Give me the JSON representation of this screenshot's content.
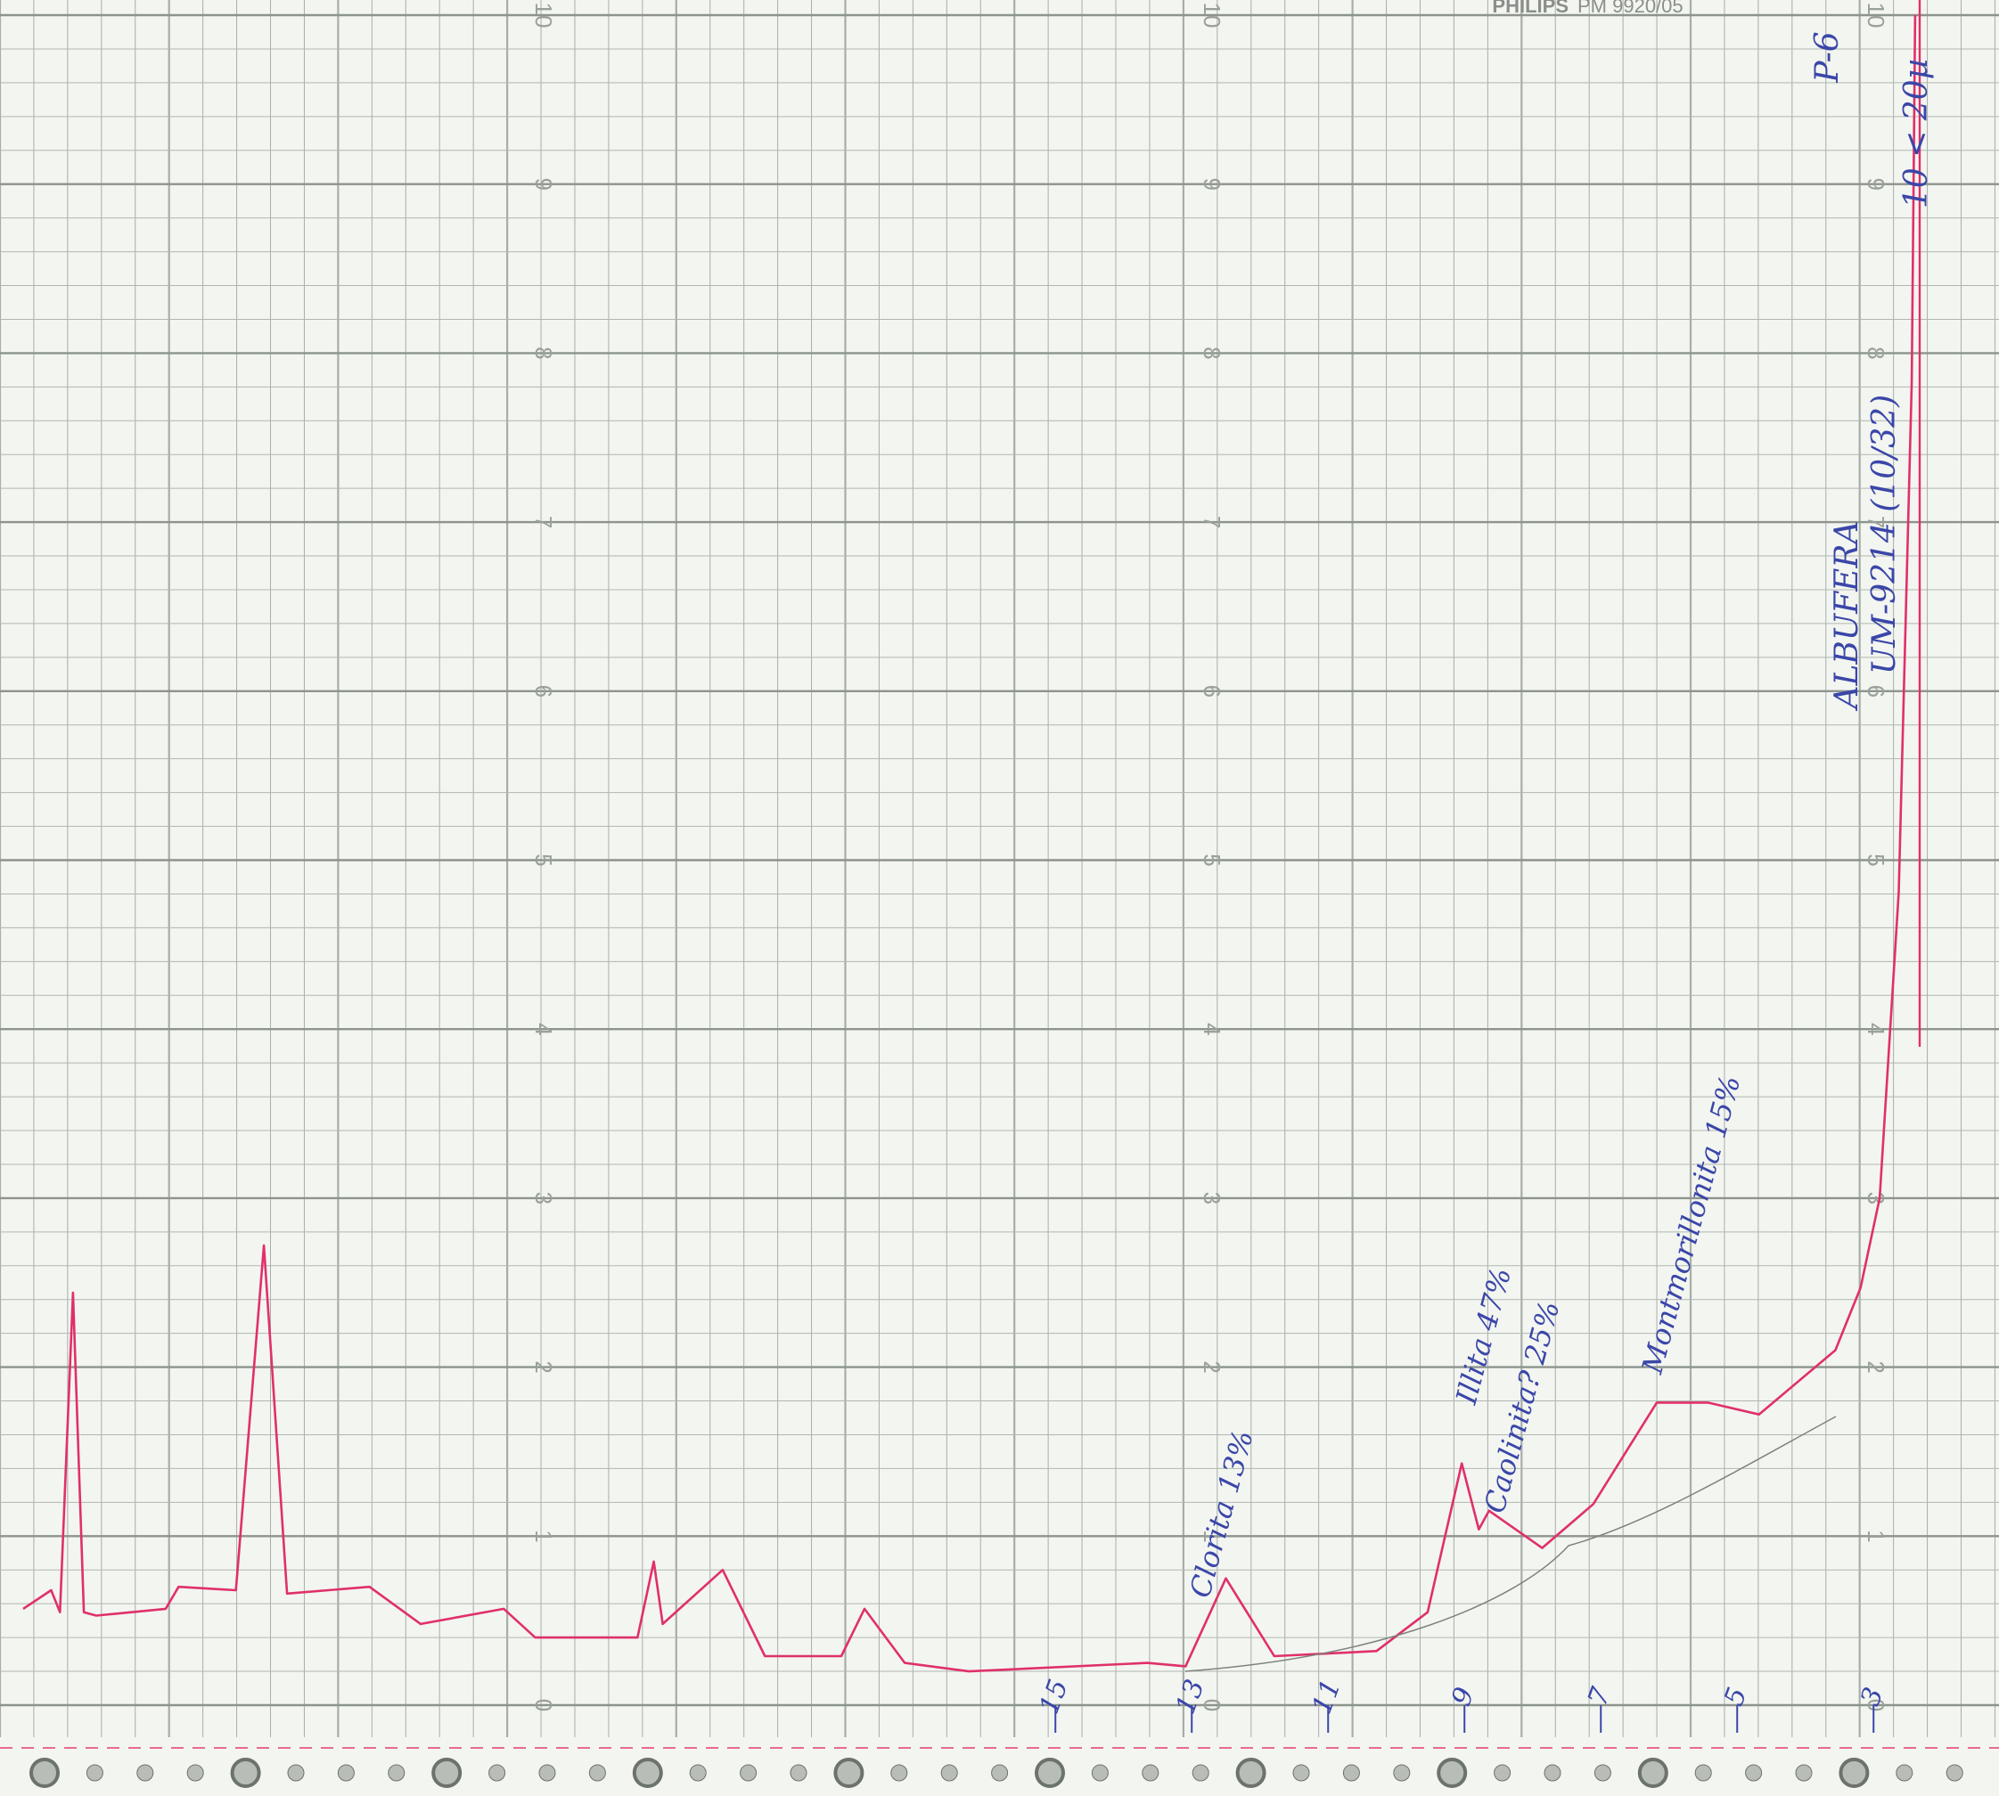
{
  "chart_data": {
    "type": "line",
    "brand": "PHILIPS",
    "model": "PM 9920/05",
    "sample_labels": [
      "P-6",
      "10 < 20µ",
      "UM-9214 (10/32)",
      "ALBUFERA"
    ],
    "annotations": [
      "Clorita 13%",
      "Illita 47%",
      "Caolinita? 25%",
      "Montmorillonita 15%"
    ],
    "x": [
      30.14,
      29.73,
      29.6,
      29.41,
      29.25,
      29.07,
      28.05,
      27.86,
      27.02,
      26.61,
      26.27,
      25.06,
      24.31,
      23.09,
      22.63,
      21.13,
      20.89,
      20.76,
      19.88,
      19.26,
      18.14,
      17.8,
      17.21,
      16.27,
      13.65,
      13.09,
      12.5,
      11.79,
      10.29,
      9.54,
      9.04,
      8.79,
      8.64,
      7.86,
      7.11,
      6.18,
      5.43,
      4.68,
      3.56,
      3.19,
      2.91,
      2.63,
      2.44,
      2.39
    ],
    "series": [
      {
        "color": "#e0306a",
        "values": [
          0.57,
          0.68,
          0.55,
          2.44,
          0.55,
          0.53,
          0.57,
          0.7,
          0.68,
          2.72,
          0.66,
          0.7,
          0.48,
          0.57,
          0.4,
          0.4,
          0.85,
          0.48,
          0.8,
          0.29,
          0.29,
          0.57,
          0.25,
          0.2,
          0.25,
          0.23,
          0.75,
          0.29,
          0.32,
          0.55,
          1.43,
          1.04,
          1.15,
          0.93,
          1.19,
          1.79,
          1.79,
          1.72,
          2.1,
          2.47,
          3.0,
          4.81,
          7.83,
          10
        ]
      }
    ],
    "xlim": [
      30.48,
      1.16
    ],
    "ylim": [
      0,
      10
    ],
    "xticks": [
      15,
      13,
      11,
      9,
      7,
      5,
      3
    ],
    "yticks": [
      0,
      1,
      2,
      3,
      4,
      5,
      6,
      7,
      8,
      9,
      10
    ],
    "grid": true
  }
}
